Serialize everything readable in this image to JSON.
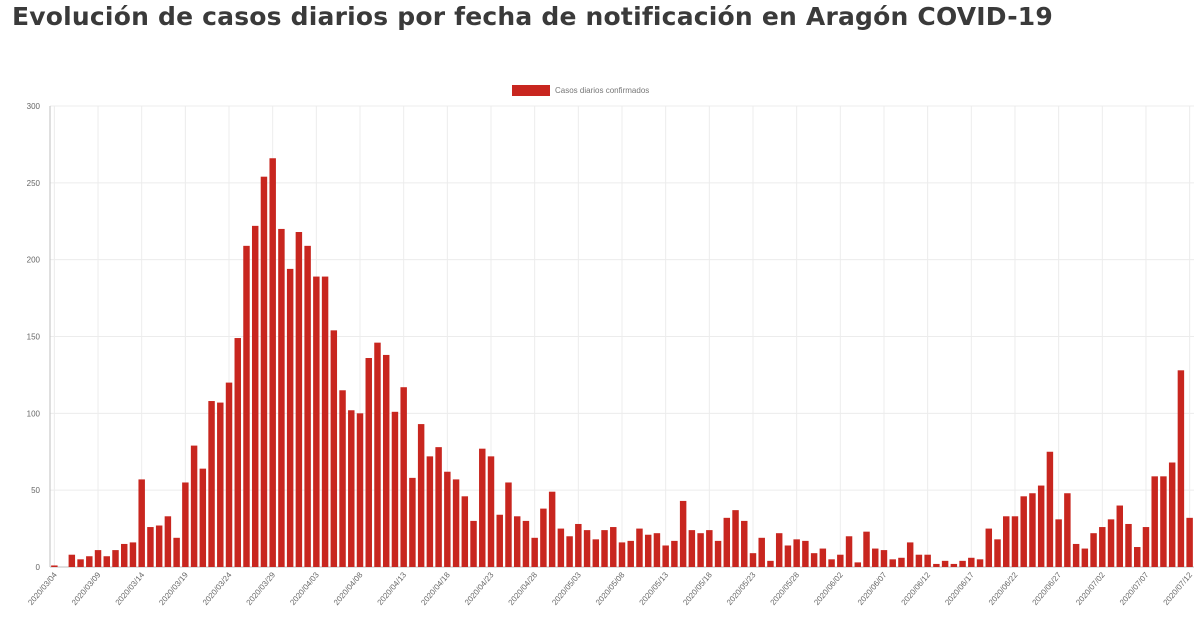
{
  "chart_data": {
    "type": "bar",
    "title": "Evolución de casos diarios por fecha de notificación en Aragón COVID-19",
    "series": [
      {
        "name": "Casos diarios confirmados",
        "color": "#c8261f",
        "values": [
          1,
          0,
          8,
          5,
          7,
          11,
          7,
          11,
          15,
          16,
          57,
          26,
          27,
          33,
          19,
          55,
          79,
          64,
          108,
          107,
          120,
          149,
          209,
          222,
          254,
          266,
          220,
          194,
          218,
          209,
          189,
          189,
          154,
          115,
          102,
          100,
          136,
          146,
          138,
          101,
          117,
          58,
          93,
          72,
          78,
          62,
          57,
          46,
          30,
          77,
          72,
          34,
          55,
          33,
          30,
          19,
          38,
          49,
          25,
          20,
          28,
          24,
          18,
          24,
          26,
          16,
          17,
          25,
          21,
          22,
          14,
          17,
          43,
          24,
          22,
          24,
          17,
          32,
          37,
          30,
          9,
          19,
          4,
          22,
          14,
          18,
          17,
          9,
          12,
          5,
          8,
          20,
          3,
          23,
          12,
          11,
          5,
          6,
          16,
          8,
          8,
          2,
          4,
          2,
          4,
          6,
          5,
          25,
          18,
          33,
          33,
          46,
          48,
          53,
          75,
          31,
          48,
          15,
          12,
          22,
          26,
          31,
          40,
          28,
          13,
          26,
          59,
          59,
          68,
          128,
          32
        ]
      }
    ],
    "x_tick_labels": [
      "2020/03/04",
      "2020/03/09",
      "2020/03/14",
      "2020/03/19",
      "2020/03/24",
      "2020/03/29",
      "2020/04/03",
      "2020/04/08",
      "2020/04/13",
      "2020/04/18",
      "2020/04/23",
      "2020/04/28",
      "2020/05/03",
      "2020/05/08",
      "2020/05/13",
      "2020/05/18",
      "2020/05/23",
      "2020/05/28",
      "2020/06/02",
      "2020/06/07",
      "2020/06/12",
      "2020/06/17",
      "2020/06/22",
      "2020/06/27",
      "2020/07/02",
      "2020/07/07",
      "2020/07/12"
    ],
    "y_ticks": [
      0,
      50,
      100,
      150,
      200,
      250,
      300
    ],
    "ylim": [
      0,
      300
    ],
    "xlabel": "",
    "ylabel": "",
    "grid": true,
    "legend_position": "top-center"
  }
}
